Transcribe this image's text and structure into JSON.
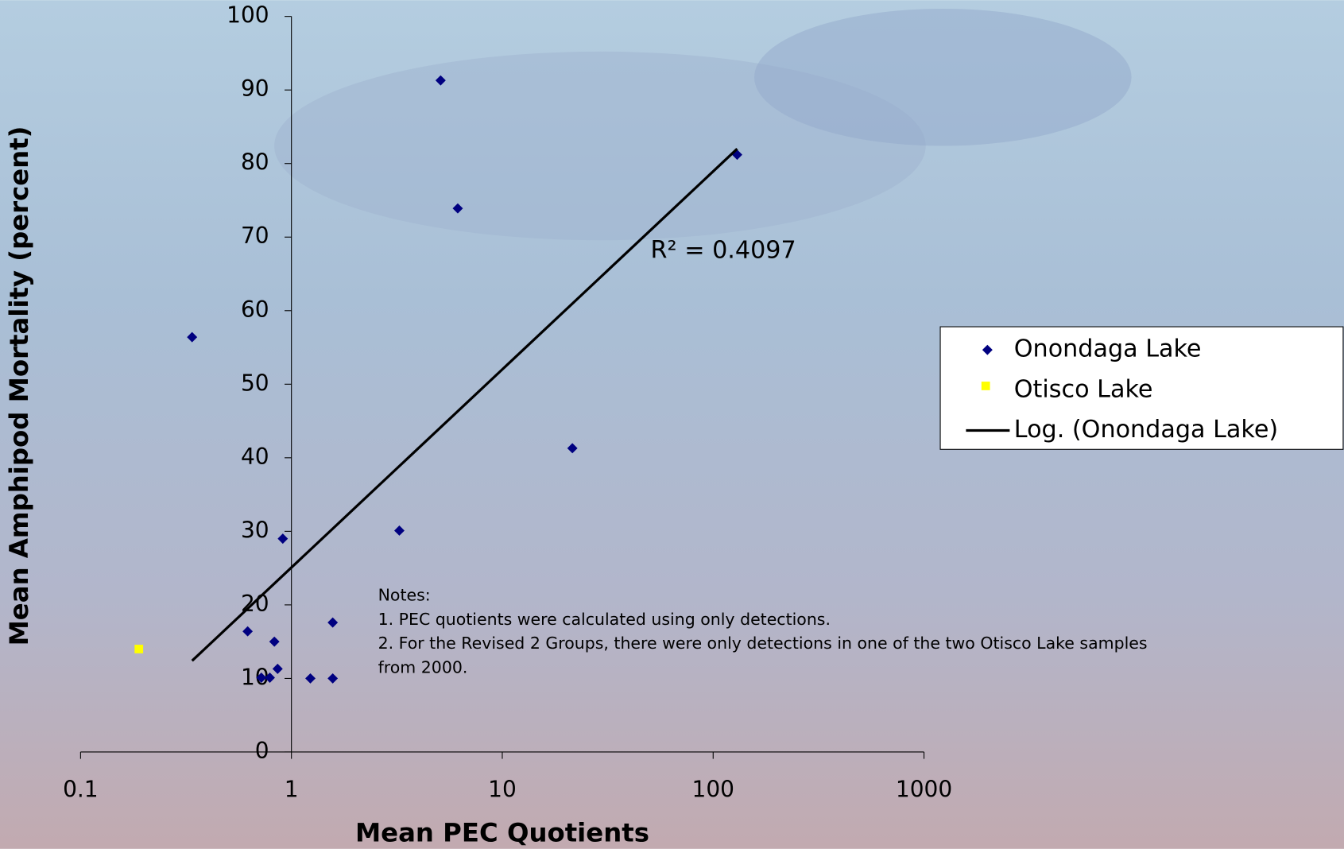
{
  "chart_data": {
    "type": "scatter",
    "x_label": "Mean PEC Quotients",
    "y_label": "Mean Amphipod Mortality (percent)",
    "x_scale": "log",
    "xlim": [
      0.1,
      1000
    ],
    "xticks": [
      0.1,
      1,
      10,
      100,
      1000
    ],
    "ylim": [
      0,
      100
    ],
    "yticks": [
      0,
      10,
      20,
      30,
      40,
      50,
      60,
      70,
      80,
      90,
      100
    ],
    "series": [
      {
        "name": "Onondaga Lake",
        "color": "#000080",
        "marker": "diamond",
        "x": [
          0.338,
          5.1,
          6.15,
          130,
          21.5,
          3.25,
          0.91,
          0.62,
          1.57,
          0.83,
          0.86,
          0.72,
          0.79,
          1.23,
          1.57
        ],
        "values": [
          56.4,
          91.3,
          73.9,
          81.2,
          41.3,
          30.1,
          29.0,
          16.4,
          17.6,
          15.0,
          11.3,
          10.1,
          10.1,
          10.0,
          10.0
        ]
      },
      {
        "name": "Otisco Lake",
        "color": "#ffff00",
        "marker": "square",
        "x": [
          0.189
        ],
        "values": [
          14.0
        ]
      },
      {
        "name": "Log. (Onondaga Lake)",
        "color": "#000000",
        "marker": "line",
        "x": [
          0.338,
          130
        ],
        "values": [
          12.4,
          82.0
        ]
      }
    ],
    "annotation": "R² = 0.4097",
    "notes": [
      "Notes:",
      "1. PEC quotients were calculated using only detections.",
      "2. For the Revised 2 Groups, there were only detections in one of the two Otisco Lake samples",
      "from 2000."
    ],
    "legend": "right"
  }
}
